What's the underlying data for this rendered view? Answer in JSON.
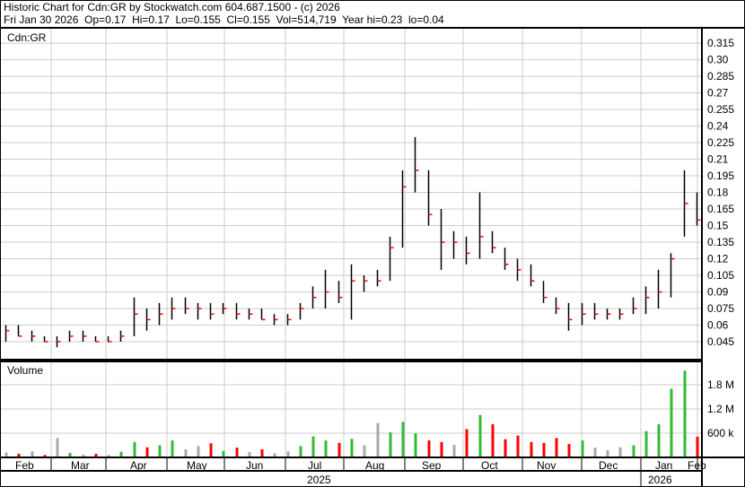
{
  "header": {
    "line1": "Historic Chart for Cdn:GR by Stockwatch.com 604.687.1500 - (c) 2026",
    "line2": "Fri Jan 30 2026  Op=0.17  Hi=0.17  Lo=0.155  Cl=0.155  Vol=514,719  Year hi=0.23  lo=0.04"
  },
  "colors": {
    "up": "#33bb33",
    "down": "#ff0000",
    "flat": "#aaaaaa",
    "bar": "#000000",
    "close_tick": "#ff0000",
    "grid": "#cccccc"
  },
  "chart_data": {
    "type": "ohlc-with-volume",
    "symbol_label": "Cdn:GR",
    "volume_label": "Volume",
    "price_ticks": [
      "0.315",
      "0.30",
      "0.285",
      "0.27",
      "0.255",
      "0.24",
      "0.225",
      "0.21",
      "0.195",
      "0.18",
      "0.165",
      "0.15",
      "0.135",
      "0.12",
      "0.105",
      "0.09",
      "0.075",
      "0.06",
      "0.045"
    ],
    "ylim": [
      0.035,
      0.325
    ],
    "volume_ticks": [
      "1.8 M",
      "1.2 M",
      "600 k"
    ],
    "volume_ylim": [
      0,
      2200000
    ],
    "x_months": [
      "Feb",
      "Mar",
      "Apr",
      "May",
      "Jun",
      "Jul",
      "Aug",
      "Sep",
      "Oct",
      "Nov",
      "Dec",
      "Jan",
      "Feb"
    ],
    "x_years": [
      "2025",
      "2026"
    ],
    "grid": true,
    "bars": [
      [
        0.045,
        0.06,
        0.055,
        120
      ],
      [
        0.05,
        0.06,
        0.05,
        90
      ],
      [
        0.045,
        0.055,
        0.05,
        150
      ],
      [
        0.045,
        0.05,
        0.045,
        60
      ],
      [
        0.04,
        0.05,
        0.045,
        480
      ],
      [
        0.045,
        0.055,
        0.05,
        110
      ],
      [
        0.045,
        0.055,
        0.05,
        70
      ],
      [
        0.045,
        0.05,
        0.045,
        90
      ],
      [
        0.045,
        0.05,
        0.045,
        60
      ],
      [
        0.045,
        0.055,
        0.05,
        140
      ],
      [
        0.05,
        0.085,
        0.07,
        380
      ],
      [
        0.055,
        0.075,
        0.065,
        250
      ],
      [
        0.06,
        0.08,
        0.07,
        300
      ],
      [
        0.065,
        0.085,
        0.075,
        420
      ],
      [
        0.07,
        0.085,
        0.075,
        200
      ],
      [
        0.065,
        0.08,
        0.075,
        280
      ],
      [
        0.065,
        0.08,
        0.07,
        350
      ],
      [
        0.07,
        0.08,
        0.075,
        160
      ],
      [
        0.065,
        0.08,
        0.07,
        240
      ],
      [
        0.065,
        0.075,
        0.07,
        130
      ],
      [
        0.065,
        0.075,
        0.065,
        200
      ],
      [
        0.06,
        0.07,
        0.065,
        100
      ],
      [
        0.06,
        0.07,
        0.065,
        150
      ],
      [
        0.065,
        0.08,
        0.075,
        280
      ],
      [
        0.075,
        0.095,
        0.085,
        520
      ],
      [
        0.075,
        0.11,
        0.09,
        420
      ],
      [
        0.08,
        0.1,
        0.085,
        360
      ],
      [
        0.065,
        0.115,
        0.1,
        460
      ],
      [
        0.09,
        0.105,
        0.1,
        300
      ],
      [
        0.095,
        0.11,
        0.1,
        850
      ],
      [
        0.1,
        0.14,
        0.13,
        620
      ],
      [
        0.13,
        0.2,
        0.185,
        880
      ],
      [
        0.18,
        0.23,
        0.2,
        600
      ],
      [
        0.15,
        0.2,
        0.16,
        420
      ],
      [
        0.11,
        0.165,
        0.135,
        380
      ],
      [
        0.12,
        0.145,
        0.135,
        310
      ],
      [
        0.115,
        0.14,
        0.125,
        700
      ],
      [
        0.12,
        0.18,
        0.14,
        1050
      ],
      [
        0.125,
        0.145,
        0.13,
        820
      ],
      [
        0.11,
        0.13,
        0.115,
        450
      ],
      [
        0.1,
        0.12,
        0.11,
        540
      ],
      [
        0.095,
        0.115,
        0.1,
        380
      ],
      [
        0.08,
        0.1,
        0.085,
        360
      ],
      [
        0.07,
        0.085,
        0.075,
        480
      ],
      [
        0.055,
        0.08,
        0.065,
        330
      ],
      [
        0.06,
        0.08,
        0.07,
        420
      ],
      [
        0.065,
        0.08,
        0.07,
        240
      ],
      [
        0.065,
        0.075,
        0.07,
        180
      ],
      [
        0.065,
        0.075,
        0.07,
        250
      ],
      [
        0.07,
        0.085,
        0.075,
        300
      ],
      [
        0.07,
        0.095,
        0.085,
        650
      ],
      [
        0.075,
        0.11,
        0.09,
        820
      ],
      [
        0.085,
        0.125,
        0.12,
        1700
      ],
      [
        0.14,
        0.2,
        0.17,
        2150
      ],
      [
        0.15,
        0.18,
        0.155,
        515
      ]
    ]
  }
}
